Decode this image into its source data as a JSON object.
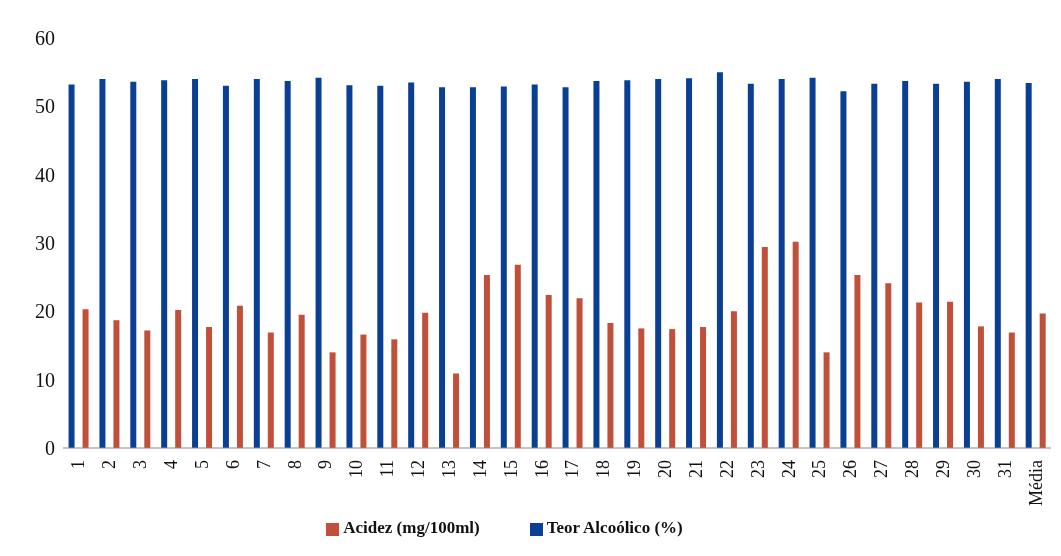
{
  "chart_data": {
    "type": "bar",
    "categories": [
      "1",
      "2",
      "3",
      "4",
      "5",
      "6",
      "7",
      "8",
      "9",
      "10",
      "11",
      "12",
      "13",
      "14",
      "15",
      "16",
      "17",
      "18",
      "19",
      "20",
      "21",
      "22",
      "23",
      "24",
      "25",
      "26",
      "27",
      "28",
      "29",
      "30",
      "31",
      "Média"
    ],
    "series": [
      {
        "name": "Teor Alcoólico (%)",
        "color": "#0a3f94",
        "values": [
          53.2,
          54,
          53.6,
          53.8,
          54,
          53,
          54,
          53.7,
          54.2,
          53.1,
          53,
          53.5,
          52.8,
          52.8,
          52.9,
          53.2,
          52.8,
          53.7,
          53.8,
          54,
          54.1,
          55,
          53.3,
          54,
          54.2,
          52.2,
          53.3,
          53.7,
          53.3,
          53.6,
          54,
          53.4
        ]
      },
      {
        "name": "Acidez (mg/100ml)",
        "color": "#c0503a",
        "values": [
          20.3,
          18.7,
          17.2,
          20.2,
          17.7,
          20.8,
          16.9,
          19.5,
          14,
          16.6,
          15.9,
          19.8,
          10.9,
          25.3,
          26.8,
          22.4,
          21.9,
          18.3,
          17.5,
          17.4,
          17.7,
          20,
          29.4,
          30.2,
          14,
          25.3,
          24.1,
          21.3,
          21.4,
          17.8,
          16.9,
          19.7
        ]
      }
    ],
    "ylim": [
      0,
      60
    ],
    "yticks": [
      0,
      10,
      20,
      30,
      40,
      50,
      60
    ],
    "grid": false,
    "legend": "bottom"
  }
}
